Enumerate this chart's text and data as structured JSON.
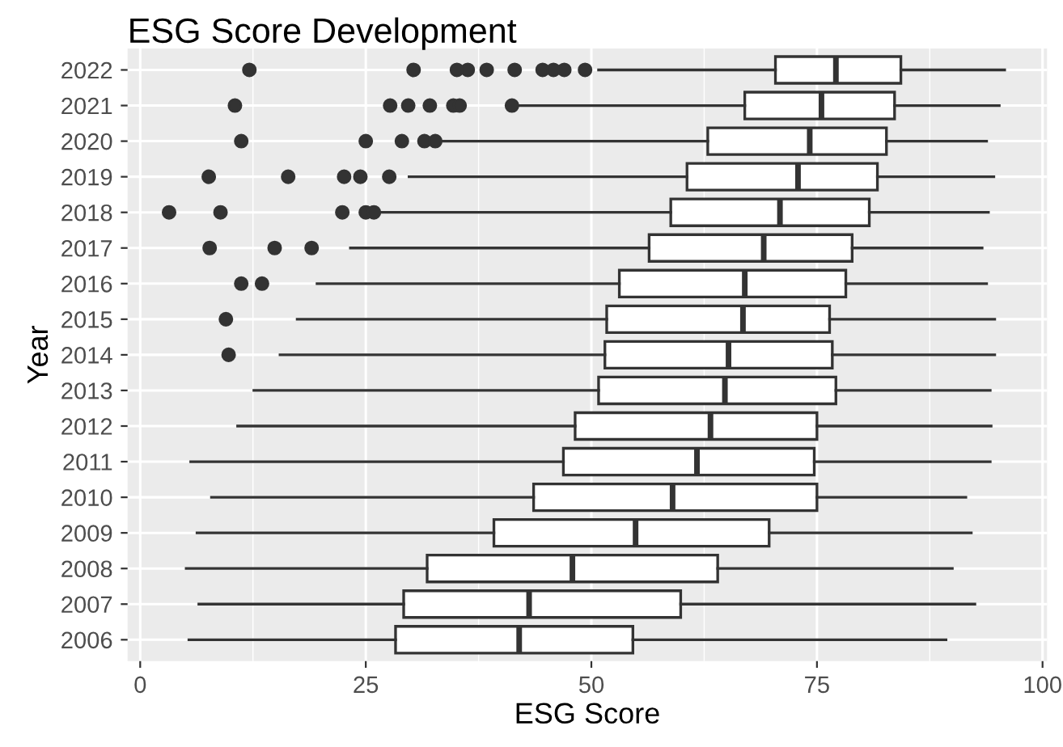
{
  "chart_data": {
    "type": "box",
    "orientation": "horizontal",
    "title": "ESG Score Development",
    "xlabel": "ESG Score",
    "ylabel": "Year",
    "categories": [
      "2022",
      "2021",
      "2020",
      "2019",
      "2018",
      "2017",
      "2016",
      "2015",
      "2014",
      "2013",
      "2012",
      "2011",
      "2010",
      "2009",
      "2008",
      "2007",
      "2006"
    ],
    "xlim": [
      -1.4,
      100.5
    ],
    "xticks": [
      0,
      25,
      50,
      75,
      100
    ],
    "grid": true,
    "color": "#ffffff",
    "boxes": [
      {
        "low": 50.8,
        "q1": 70.4,
        "median": 77.1,
        "q3": 84.3,
        "high": 95.8,
        "outliers": [
          12.1,
          30.3,
          35.1,
          36.3,
          38.4,
          41.5,
          44.6,
          45.8,
          47,
          49.3
        ]
      },
      {
        "low": 41.3,
        "q1": 67,
        "median": 75.5,
        "q3": 83.6,
        "high": 95.2,
        "outliers": [
          10.5,
          27.7,
          29.7,
          32.1,
          34.7,
          35.4,
          41.2
        ]
      },
      {
        "low": 33.5,
        "q1": 62.9,
        "median": 74.2,
        "q3": 82.7,
        "high": 93.8,
        "outliers": [
          11.2,
          25,
          29,
          31.5,
          32.7
        ]
      },
      {
        "low": 29.8,
        "q1": 60.6,
        "median": 72.9,
        "q3": 81.7,
        "high": 94.6,
        "outliers": [
          7.6,
          16.4,
          22.6,
          24.4,
          27.6
        ]
      },
      {
        "low": 26.6,
        "q1": 58.8,
        "median": 70.9,
        "q3": 80.8,
        "high": 94,
        "outliers": [
          3.2,
          8.9,
          22.4,
          25,
          25.9
        ]
      },
      {
        "low": 23.3,
        "q1": 56.4,
        "median": 69.1,
        "q3": 78.9,
        "high": 93.3,
        "outliers": [
          7.7,
          14.9,
          19
        ]
      },
      {
        "low": 19.6,
        "q1": 53.1,
        "median": 67,
        "q3": 78.2,
        "high": 93.8,
        "outliers": [
          11.2,
          13.5
        ]
      },
      {
        "low": 17.4,
        "q1": 51.7,
        "median": 66.8,
        "q3": 76.4,
        "high": 94.7,
        "outliers": [
          9.5
        ]
      },
      {
        "low": 15.5,
        "q1": 51.5,
        "median": 65.2,
        "q3": 76.7,
        "high": 94.7,
        "outliers": [
          9.8
        ]
      },
      {
        "low": 12.6,
        "q1": 50.8,
        "median": 64.8,
        "q3": 77.1,
        "high": 94.2
      },
      {
        "low": 10.8,
        "q1": 48.2,
        "median": 63.2,
        "q3": 75,
        "high": 94.3
      },
      {
        "low": 5.6,
        "q1": 46.9,
        "median": 61.7,
        "q3": 74.7,
        "high": 94.2
      },
      {
        "low": 7.9,
        "q1": 43.6,
        "median": 59,
        "q3": 75,
        "high": 91.5
      },
      {
        "low": 6.3,
        "q1": 39.2,
        "median": 54.9,
        "q3": 69.7,
        "high": 92.1
      },
      {
        "low": 5.1,
        "q1": 31.8,
        "median": 47.9,
        "q3": 64,
        "high": 90
      },
      {
        "low": 6.5,
        "q1": 29.2,
        "median": 43.1,
        "q3": 59.9,
        "high": 92.5
      },
      {
        "low": 5.4,
        "q1": 28.3,
        "median": 42,
        "q3": 54.6,
        "high": 89.3
      }
    ]
  }
}
